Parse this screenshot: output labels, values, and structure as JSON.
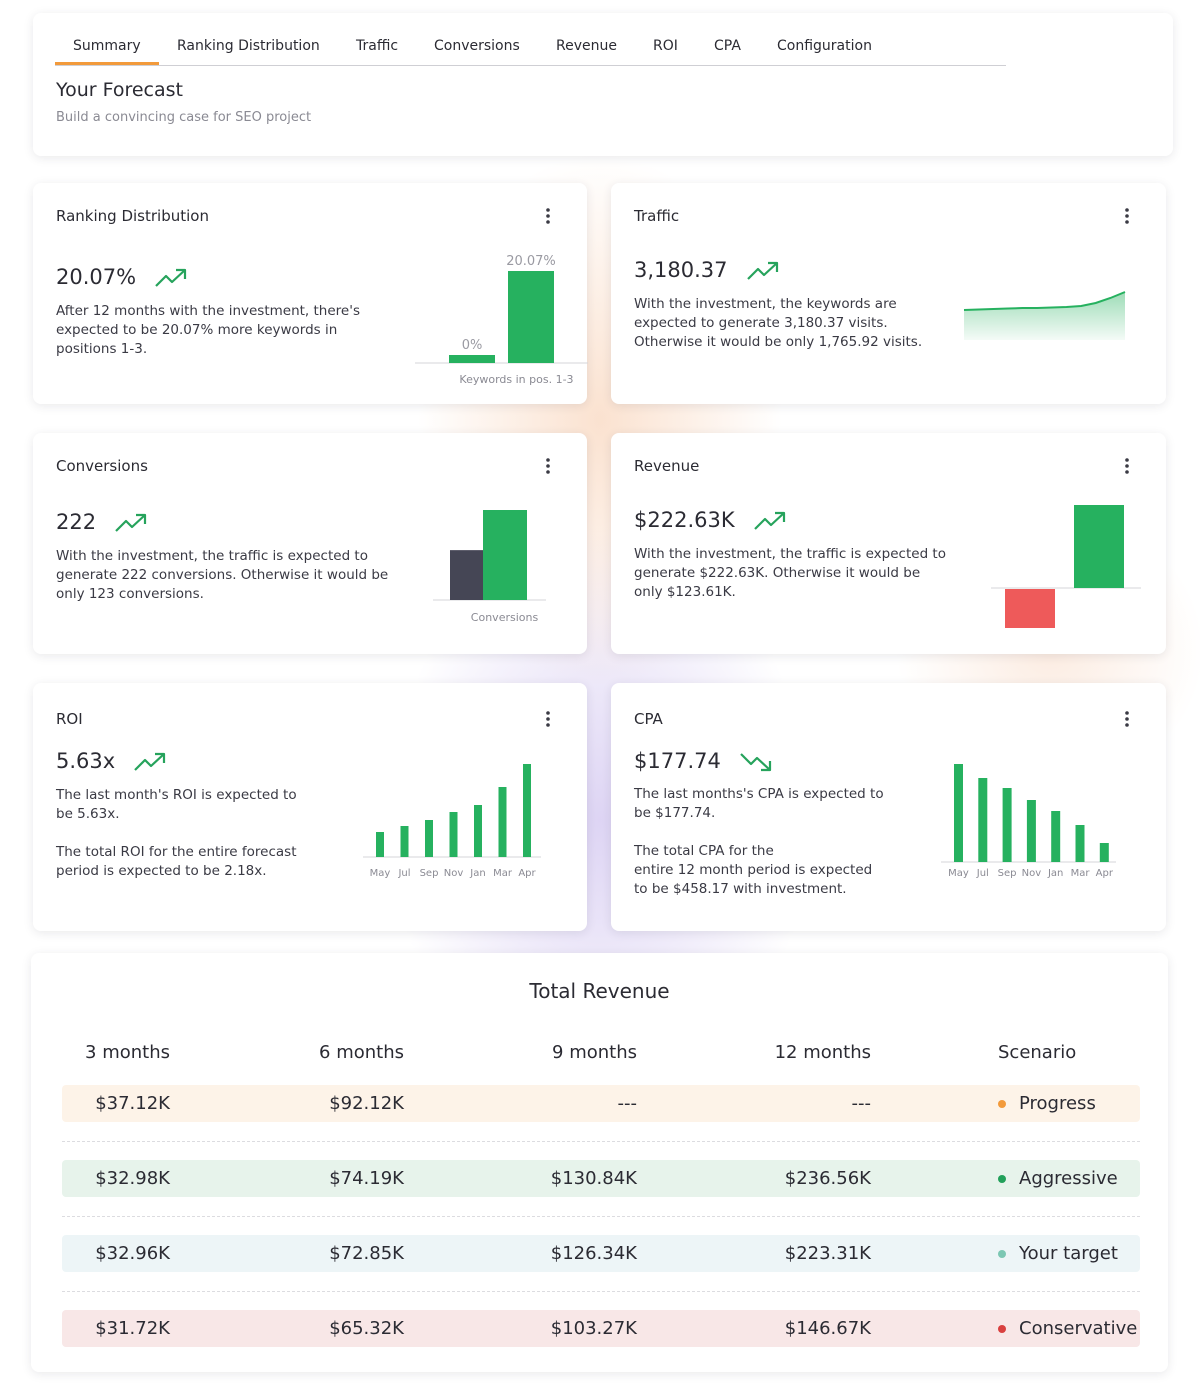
{
  "tabs": [
    "Summary",
    "Ranking Distribution",
    "Traffic",
    "Conversions",
    "Revenue",
    "ROI",
    "CPA",
    "Configuration"
  ],
  "header": {
    "title": "Your Forecast",
    "subtitle": "Build a convincing case for SEO project"
  },
  "cards": [
    {
      "title": "Ranking Distribution",
      "value": "20.07%",
      "trend": "up",
      "description": [
        [
          "After 12 months with the investment, there's",
          "expected to be 20.07% more keywords in",
          "positions 1-3."
        ]
      ],
      "chart": {
        "type": "bar",
        "values": [
          0,
          20.07
        ],
        "value_labels": [
          "0%",
          "20.07%"
        ],
        "colors": [
          "#26b15f",
          "#26b15f"
        ],
        "xlabel": "Keywords in pos. 1-3"
      }
    },
    {
      "title": "Traffic",
      "value": "3,180.37",
      "trend": "up",
      "description": [
        [
          "With the investment, the keywords are",
          "expected to generate 3,180.37 visits.",
          "Otherwise it would be only 1,765.92 visits."
        ]
      ],
      "chart": {
        "type": "area",
        "values": [
          30,
          30.5,
          31,
          31.5,
          32,
          32,
          32.5,
          33,
          34,
          37,
          42,
          48
        ],
        "color": "#26b15f"
      }
    },
    {
      "title": "Conversions",
      "value": "222",
      "trend": "up",
      "description": [
        [
          "With the investment, the traffic is expected to",
          "generate 222 conversions. Otherwise it would be",
          "only 123 conversions."
        ]
      ],
      "chart": {
        "type": "bar",
        "values": [
          123,
          222
        ],
        "colors": [
          "#454655",
          "#26b15f"
        ],
        "xlabel": "Conversions"
      }
    },
    {
      "title": "Revenue",
      "value": "$222.63K",
      "trend": "up",
      "description": [
        [
          "With the investment, the traffic is expected to",
          "generate $222.63K. Otherwise it would be",
          "only $123.61K."
        ]
      ],
      "chart": {
        "type": "bar",
        "values": [
          -39,
          83
        ],
        "colors": [
          "#ee5a5a",
          "#26b15f"
        ]
      }
    },
    {
      "title": "ROI",
      "value": "5.63x",
      "trend": "up",
      "description": [
        [
          "The last month's ROI is expected to",
          "be 5.63x."
        ],
        [
          "The total ROI for the entire forecast",
          "period is expected to be 2.18x."
        ]
      ],
      "chart": {
        "type": "bar",
        "categories": [
          "May",
          "Jul",
          "Sep",
          "Nov",
          "Jan",
          "Mar",
          "Apr"
        ],
        "values": [
          25,
          31,
          37,
          45,
          52,
          70,
          93
        ],
        "color": "#26b15f"
      }
    },
    {
      "title": "CPA",
      "value": "$177.74",
      "trend": "down",
      "description": [
        [
          "The last months's CPA is expected to",
          "be $177.74."
        ],
        [
          "The total CPA for the",
          "entire 12 month period is expected",
          "to be $458.17 with investment."
        ]
      ],
      "chart": {
        "type": "bar",
        "categories": [
          "May",
          "Jul",
          "Sep",
          "Nov",
          "Jan",
          "Mar",
          "Apr"
        ],
        "values": [
          98,
          84,
          74,
          62,
          51,
          37,
          19
        ],
        "color": "#26b15f"
      }
    }
  ],
  "table": {
    "title": "Total Revenue",
    "columns": [
      "3 months",
      "6 months",
      "9 months",
      "12 months",
      "Scenario"
    ],
    "rows": [
      {
        "cells": [
          "$37.12K",
          "$92.12K",
          "---",
          "---",
          "Progress"
        ],
        "background": "#fdf3e8",
        "dot": "#f29a3b"
      },
      {
        "cells": [
          "$32.98K",
          "$74.19K",
          "$130.84K",
          "$236.56K",
          "Aggressive"
        ],
        "background": "#e7f3eb",
        "dot": "#22a05a"
      },
      {
        "cells": [
          "$32.96K",
          "$72.85K",
          "$126.34K",
          "$223.31K",
          "Your target"
        ],
        "background": "#edf5f7",
        "dot": "#7cc7b3"
      },
      {
        "cells": [
          "$31.72K",
          "$65.32K",
          "$103.27K",
          "$146.67K",
          "Conservative"
        ],
        "background": "#f8e7e7",
        "dot": "#d9403f"
      }
    ]
  }
}
